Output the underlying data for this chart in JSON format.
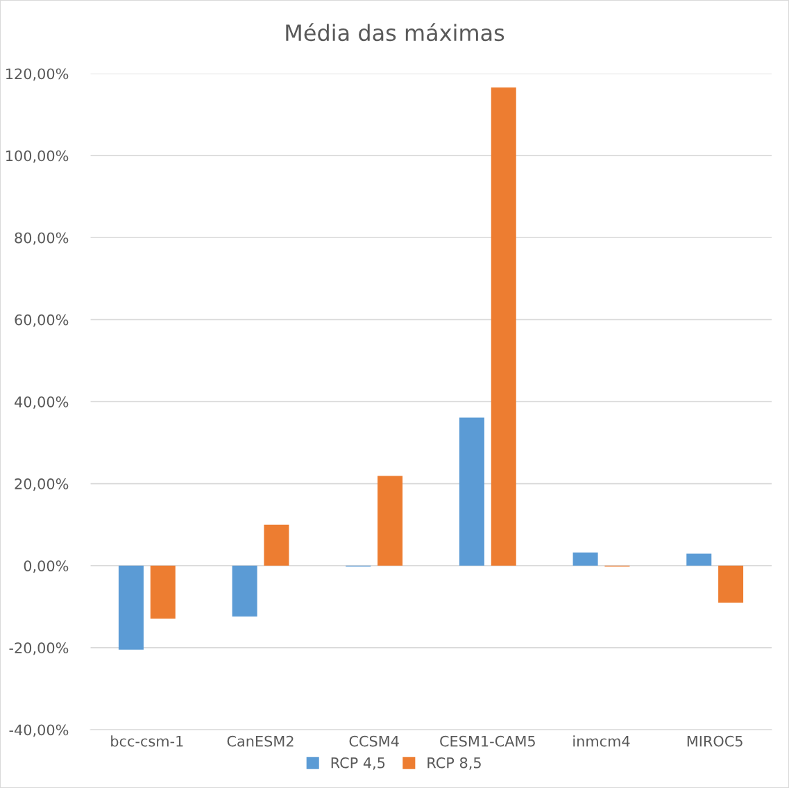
{
  "chart_data": {
    "type": "bar",
    "title": "Média das máximas",
    "categories": [
      "bcc-csm-1",
      "CanESM2",
      "CCSM4",
      "CESM1-CAM5",
      "inmcm4",
      "MIROC5"
    ],
    "series": [
      {
        "name": "RCP 4,5",
        "color": "#5b9bd5",
        "values": [
          -20.5,
          -12.4,
          -0.2,
          36.1,
          3.2,
          2.9
        ]
      },
      {
        "name": "RCP 8,5",
        "color": "#ed7d31",
        "values": [
          -12.9,
          10.0,
          21.9,
          116.6,
          -0.2,
          -9.0
        ]
      }
    ],
    "ylim": [
      -40,
      120
    ],
    "yticks": [
      {
        "value": -40,
        "label": "-40,00%"
      },
      {
        "value": -20,
        "label": "-20,00%"
      },
      {
        "value": 0,
        "label": "0,00%"
      },
      {
        "value": 20,
        "label": "20,00%"
      },
      {
        "value": 40,
        "label": "40,00%"
      },
      {
        "value": 60,
        "label": "60,00%"
      },
      {
        "value": 80,
        "label": "80,00%"
      },
      {
        "value": 100,
        "label": "100,00%"
      },
      {
        "value": 120,
        "label": "120,00%"
      }
    ],
    "grid": "y",
    "legend": "bottom"
  }
}
